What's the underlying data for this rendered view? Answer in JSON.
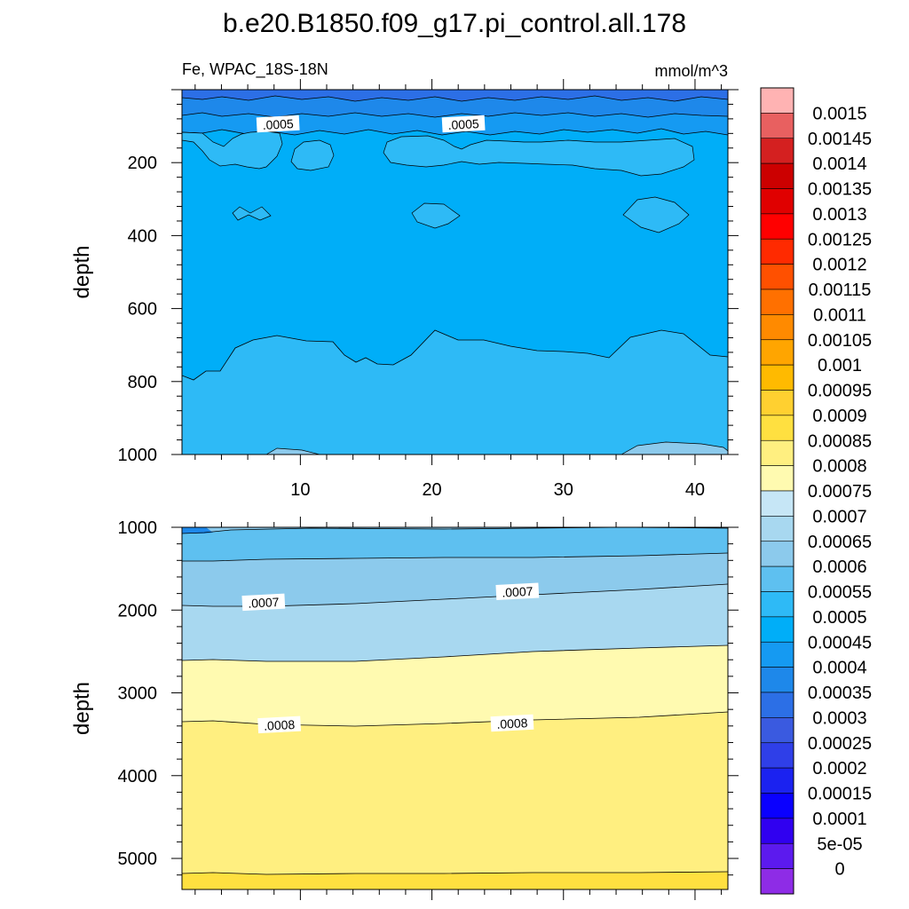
{
  "chart_data": {
    "type": "contour",
    "title": "b.e20.B1850.f09_g17.pi_control.all.178",
    "subtitle_left": "Fe, WPAC_18S-18N",
    "subtitle_right": "mmol/m^3",
    "x_ticks": [
      10,
      20,
      30,
      40
    ],
    "xlim": [
      1,
      42.5
    ],
    "panels": [
      {
        "name": "upper",
        "ylabel": "depth",
        "ylim": [
          0,
          1000
        ],
        "y_ticks": [
          200,
          400,
          600,
          800,
          1000
        ],
        "contour_labels": [
          {
            "text": ".0005",
            "x": 8.3,
            "y": 95
          },
          {
            "text": ".0005",
            "x": 22.4,
            "y": 95
          }
        ]
      },
      {
        "name": "lower",
        "ylabel": "depth",
        "ylim": [
          1000,
          5375
        ],
        "y_ticks": [
          1000,
          2000,
          3000,
          4000,
          5000
        ],
        "contour_labels": [
          {
            "text": ".0007",
            "x": 7.2,
            "y": 1910
          },
          {
            "text": ".0007",
            "x": 26.5,
            "y": 1780
          },
          {
            "text": ".0008",
            "x": 8.4,
            "y": 3390
          },
          {
            "text": ".0008",
            "x": 26.1,
            "y": 3370
          }
        ]
      }
    ],
    "colorbar": {
      "labels": [
        "0.0015",
        "0.00145",
        "0.0014",
        "0.00135",
        "0.0013",
        "0.00125",
        "0.0012",
        "0.00115",
        "0.0011",
        "0.00105",
        "0.001",
        "0.00095",
        "0.0009",
        "0.00085",
        "0.0008",
        "0.00075",
        "0.0007",
        "0.00065",
        "0.0006",
        "0.00055",
        "0.0005",
        "0.00045",
        "0.0004",
        "0.00035",
        "0.0003",
        "0.00025",
        "0.0002",
        "0.00015",
        "0.0001",
        "5e-05",
        "0"
      ],
      "colors": [
        "#FFB3B3",
        "#E86060",
        "#D42020",
        "#CC0000",
        "#E00000",
        "#FF0000",
        "#FF2A00",
        "#FF5000",
        "#FF7000",
        "#FF8A00",
        "#FFA500",
        "#FFBA00",
        "#FFD030",
        "#FFE040",
        "#FFEF80",
        "#FFFAB0",
        "#C6E6F6",
        "#A8D8F0",
        "#8CCAEC",
        "#5EC0F0",
        "#2EBAF6",
        "#00AEF8",
        "#159AF2",
        "#1E88EA",
        "#2C6FE6",
        "#3A5AE0",
        "#2F3FE8",
        "#1B22F0",
        "#0A00FF",
        "#3000F0",
        "#5C1AEE",
        "#8E2CE6"
      ]
    }
  }
}
